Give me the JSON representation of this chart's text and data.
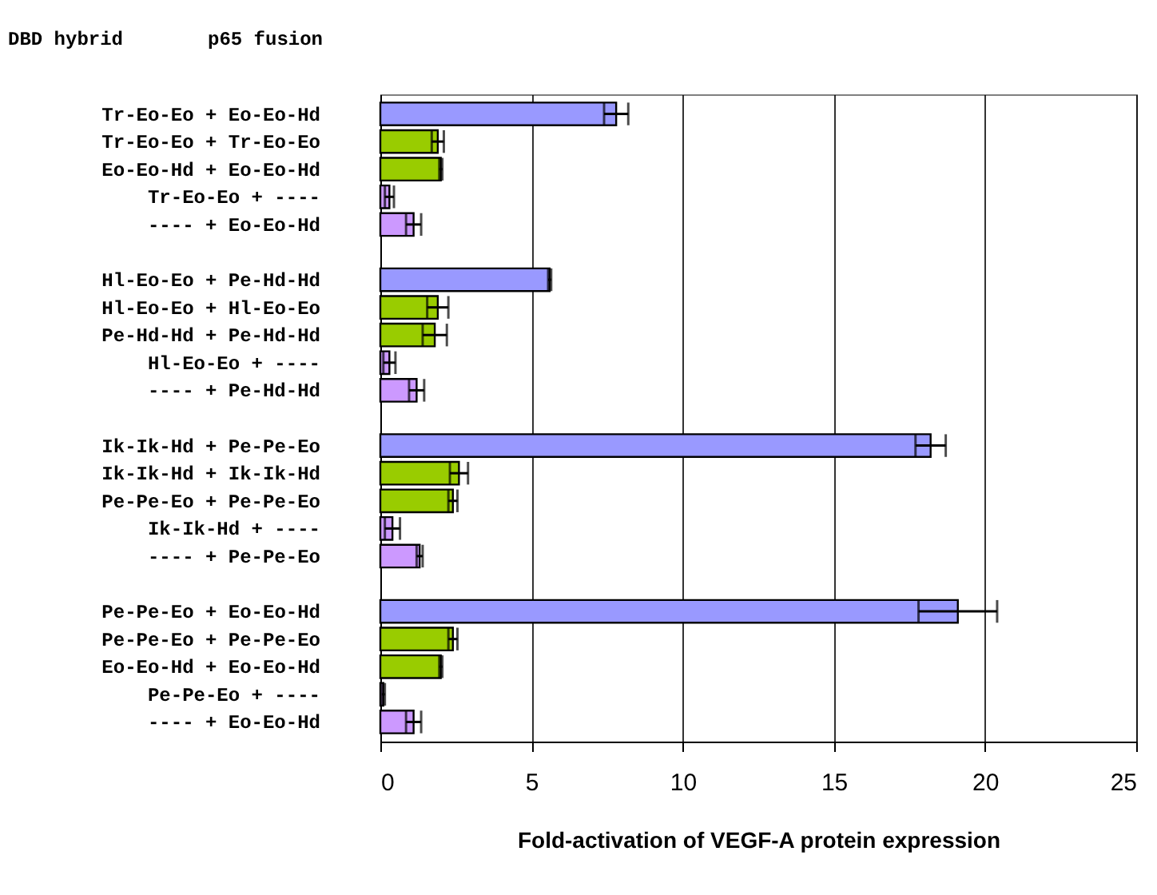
{
  "chart_data": {
    "type": "bar",
    "orientation": "horizontal",
    "categories": [
      "Tr-Eo-Eo + Eo-Eo-Hd",
      "Tr-Eo-Eo + Tr-Eo-Eo",
      "Eo-Eo-Hd + Eo-Eo-Hd",
      "Tr-Eo-Eo +   ----  ",
      "  ----   + Eo-Eo-Hd",
      null,
      "Hl-Eo-Eo + Pe-Hd-Hd",
      "Hl-Eo-Eo + Hl-Eo-Eo",
      "Pe-Hd-Hd + Pe-Hd-Hd",
      "Hl-Eo-Eo +   ----  ",
      "  ----   + Pe-Hd-Hd",
      null,
      "Ik-Ik-Hd + Pe-Pe-Eo",
      "Ik-Ik-Hd + Ik-Ik-Hd",
      "Pe-Pe-Eo + Pe-Pe-Eo",
      "Ik-Ik-Hd +   ----  ",
      "  ----   + Pe-Pe-Eo",
      null,
      "Pe-Pe-Eo + Eo-Eo-Hd",
      "Pe-Pe-Eo + Pe-Pe-Eo",
      "Eo-Eo-Hd + Eo-Eo-Hd",
      "Pe-Pe-Eo +   ----  ",
      "  ----   + Eo-Eo-Hd"
    ],
    "values": [
      7.8,
      1.9,
      2.0,
      0.3,
      1.1,
      null,
      5.6,
      1.9,
      1.8,
      0.3,
      1.2,
      null,
      18.2,
      2.6,
      2.4,
      0.4,
      1.3,
      null,
      19.1,
      2.4,
      2.0,
      0.1,
      1.1
    ],
    "errors": [
      0.4,
      0.2,
      0.05,
      0.15,
      0.25,
      null,
      0.05,
      0.35,
      0.4,
      0.2,
      0.25,
      null,
      0.5,
      0.3,
      0.15,
      0.25,
      0.1,
      null,
      1.3,
      0.15,
      0.05,
      0.05,
      0.25
    ],
    "colors": [
      "#9999ff",
      "#99cc00",
      "#99cc00",
      "#cc99ff",
      "#cc99ff",
      null,
      "#9999ff",
      "#99cc00",
      "#99cc00",
      "#cc99ff",
      "#cc99ff",
      null,
      "#9999ff",
      "#99cc00",
      "#99cc00",
      "#cc99ff",
      "#cc99ff",
      null,
      "#9999ff",
      "#99cc00",
      "#99cc00",
      "#cc99ff",
      "#cc99ff"
    ],
    "xlabel": "Fold-activation of VEGF-A protein expression",
    "xlim": [
      0,
      25
    ],
    "xticks": [
      0,
      5,
      10,
      15,
      20,
      25
    ],
    "grid": "x",
    "annotations": [
      "DBD hybrid",
      "p65 fusion"
    ]
  }
}
